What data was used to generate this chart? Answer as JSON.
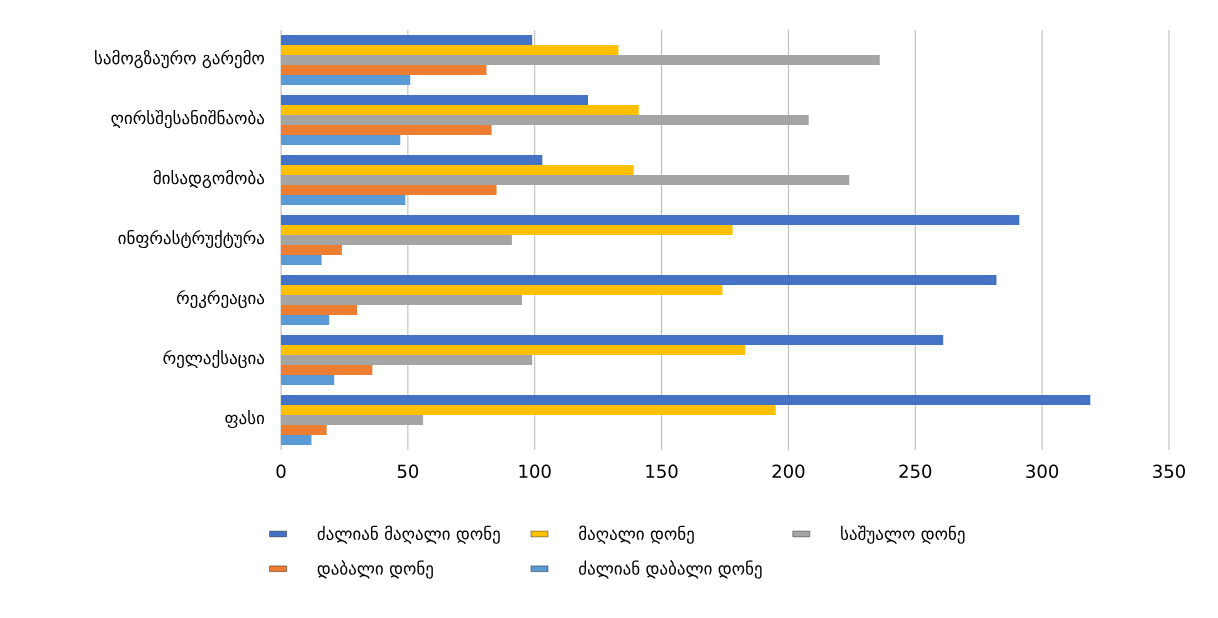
{
  "chart_data": {
    "type": "bar",
    "orientation": "horizontal",
    "categories": [
      "სამოგზაურო გარემო",
      "ღირსშესანიშნაობა",
      "მისადგომობა",
      "ინფრასტრუქტურა",
      "რეკრეაცია",
      "რელაქსაცია",
      "ფასი"
    ],
    "series": [
      {
        "name": "ძალიან მაღალი დონე",
        "color": "#4472c4",
        "values": [
          99,
          121,
          103,
          291,
          282,
          261,
          319
        ]
      },
      {
        "name": "მაღალი დონე",
        "color": "#ffc000",
        "values": [
          133,
          141,
          139,
          178,
          174,
          183,
          195
        ]
      },
      {
        "name": "საშუალო დონე",
        "color": "#a5a5a5",
        "values": [
          236,
          208,
          224,
          91,
          95,
          99,
          56
        ]
      },
      {
        "name": "დაბალი დონე",
        "color": "#ed7d31",
        "values": [
          81,
          83,
          85,
          24,
          30,
          36,
          18
        ]
      },
      {
        "name": "ძალიან დაბალი დონე",
        "color": "#5b9bd5",
        "values": [
          51,
          47,
          49,
          16,
          19,
          21,
          12
        ]
      }
    ],
    "xlim": [
      0,
      350
    ],
    "xticks": [
      0,
      50,
      100,
      150,
      200,
      250,
      300,
      350
    ],
    "grid": "x",
    "legend": "bottom"
  }
}
